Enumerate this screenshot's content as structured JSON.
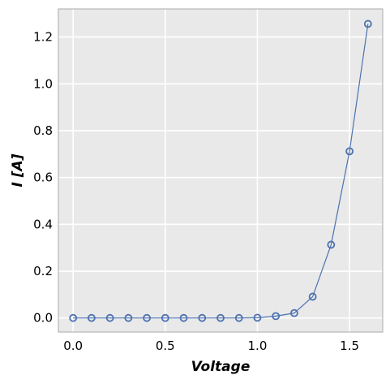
{
  "chart_data": {
    "type": "line",
    "xlabel": "Voltage",
    "ylabel": "I [A]",
    "xlim": [
      -0.08,
      1.68
    ],
    "ylim": [
      -0.06,
      1.32
    ],
    "xticks": [
      "0.0",
      "0.5",
      "1.0",
      "1.5"
    ],
    "xtick_values": [
      0.0,
      0.5,
      1.0,
      1.5
    ],
    "yticks": [
      "0.0",
      "0.2",
      "0.4",
      "0.6",
      "0.8",
      "1.0",
      "1.2"
    ],
    "ytick_values": [
      0.0,
      0.2,
      0.4,
      0.6,
      0.8,
      1.0,
      1.2
    ],
    "grid": true,
    "marker": "circle",
    "colors": {
      "line": "#4c72b0",
      "background": "#e9e9e9",
      "grid": "#ffffff",
      "frame": "#aaaaaa"
    },
    "series": [
      {
        "x": [
          0.0,
          0.1,
          0.2,
          0.3,
          0.4,
          0.5,
          0.6,
          0.7,
          0.8,
          0.9,
          1.0,
          1.1,
          1.2,
          1.3,
          1.4,
          1.5,
          1.6
        ],
        "y": [
          0.0,
          0.0,
          0.0,
          0.0,
          0.0,
          0.0,
          0.0,
          0.0,
          0.0,
          0.0,
          0.001,
          0.008,
          0.021,
          0.091,
          0.313,
          0.712,
          1.256
        ]
      }
    ]
  }
}
